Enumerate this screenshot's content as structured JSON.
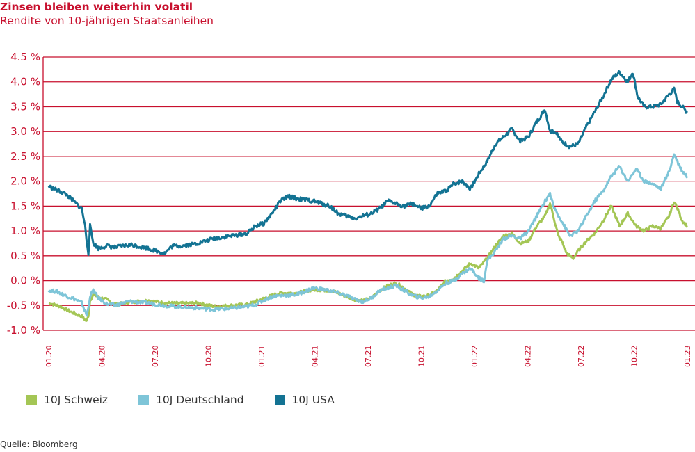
{
  "chart_data": {
    "type": "line",
    "title": "Zinsen bleiben weiterhin volatil",
    "subtitle": "Rendite von 10-jährigen Staatsanleihen",
    "y_ticks": [
      "4.5 %",
      "4.0 %",
      "3.5 %",
      "3.0 %",
      "2.5 %",
      "2.0 %",
      "1.5 %",
      "1.0 %",
      "0.5 %",
      "0.0 %",
      "-0.5 %",
      "-1.0 %"
    ],
    "ylim": [
      -1.0,
      4.5
    ],
    "grid": true,
    "x_ticks": [
      "01.20",
      "04.20",
      "07.20",
      "10.20",
      "01.21",
      "04.21",
      "07.21",
      "10.21",
      "01.22",
      "04.22",
      "07.22",
      "10.22",
      "01.23"
    ],
    "x_range_months": [
      0,
      36
    ],
    "legend_position": "bottom",
    "series": [
      {
        "name": "10J Schweiz",
        "color": "#a4c655",
        "points": [
          [
            0,
            -0.45
          ],
          [
            0.7,
            -0.52
          ],
          [
            1.3,
            -0.62
          ],
          [
            2.0,
            -0.72
          ],
          [
            2.3,
            -0.82
          ],
          [
            2.4,
            -0.7
          ],
          [
            2.5,
            -0.4
          ],
          [
            2.7,
            -0.28
          ],
          [
            3.0,
            -0.33
          ],
          [
            3.5,
            -0.38
          ],
          [
            4.0,
            -0.48
          ],
          [
            4.5,
            -0.46
          ],
          [
            5.0,
            -0.43
          ],
          [
            6.0,
            -0.4
          ],
          [
            7.0,
            -0.45
          ],
          [
            8.0,
            -0.46
          ],
          [
            9.0,
            -0.45
          ],
          [
            10.0,
            -0.52
          ],
          [
            11.0,
            -0.5
          ],
          [
            12.0,
            -0.48
          ],
          [
            12.5,
            -0.42
          ],
          [
            13.0,
            -0.36
          ],
          [
            13.5,
            -0.3
          ],
          [
            14.0,
            -0.25
          ],
          [
            15.0,
            -0.25
          ],
          [
            16.0,
            -0.18
          ],
          [
            17.0,
            -0.2
          ],
          [
            17.5,
            -0.25
          ],
          [
            18.0,
            -0.32
          ],
          [
            18.5,
            -0.38
          ],
          [
            19.0,
            -0.4
          ],
          [
            19.5,
            -0.35
          ],
          [
            20.0,
            -0.2
          ],
          [
            20.5,
            -0.1
          ],
          [
            21.0,
            -0.05
          ],
          [
            21.5,
            -0.15
          ],
          [
            22.0,
            -0.28
          ],
          [
            22.5,
            -0.32
          ],
          [
            23.0,
            -0.3
          ],
          [
            23.5,
            -0.2
          ],
          [
            24.0,
            0.0
          ],
          [
            24.5,
            0.05
          ],
          [
            25.0,
            0.2
          ],
          [
            25.5,
            0.35
          ],
          [
            26.0,
            0.25
          ],
          [
            26.5,
            0.45
          ],
          [
            27.0,
            0.7
          ],
          [
            27.5,
            0.9
          ],
          [
            28.0,
            0.95
          ],
          [
            28.5,
            0.75
          ],
          [
            29.0,
            0.8
          ],
          [
            29.5,
            1.1
          ],
          [
            30.0,
            1.3
          ],
          [
            30.3,
            1.55
          ],
          [
            30.5,
            1.3
          ],
          [
            30.8,
            0.9
          ],
          [
            31.0,
            0.8
          ],
          [
            31.3,
            0.55
          ],
          [
            31.7,
            0.45
          ],
          [
            32.0,
            0.6
          ],
          [
            32.5,
            0.8
          ],
          [
            33.0,
            0.95
          ],
          [
            33.5,
            1.2
          ],
          [
            34.0,
            1.5
          ],
          [
            34.5,
            1.1
          ],
          [
            35.0,
            1.35
          ],
          [
            35.5,
            1.1
          ],
          [
            36.0,
            1.0
          ],
          [
            36.5,
            1.1
          ],
          [
            37.0,
            1.05
          ],
          [
            37.5,
            1.3
          ],
          [
            37.8,
            1.6
          ],
          [
            38.0,
            1.45
          ],
          [
            38.3,
            1.2
          ],
          [
            38.6,
            1.1
          ]
        ]
      },
      {
        "name": "10J Deutschland",
        "color": "#7ec5d8",
        "points": [
          [
            0,
            -0.2
          ],
          [
            0.5,
            -0.22
          ],
          [
            1.0,
            -0.3
          ],
          [
            1.5,
            -0.36
          ],
          [
            2.0,
            -0.45
          ],
          [
            2.3,
            -0.7
          ],
          [
            2.4,
            -0.55
          ],
          [
            2.5,
            -0.3
          ],
          [
            2.7,
            -0.2
          ],
          [
            3.0,
            -0.35
          ],
          [
            3.5,
            -0.47
          ],
          [
            4.0,
            -0.5
          ],
          [
            4.5,
            -0.45
          ],
          [
            5.0,
            -0.42
          ],
          [
            6.0,
            -0.45
          ],
          [
            7.0,
            -0.5
          ],
          [
            8.0,
            -0.53
          ],
          [
            9.0,
            -0.55
          ],
          [
            10.0,
            -0.58
          ],
          [
            11.0,
            -0.56
          ],
          [
            12.0,
            -0.52
          ],
          [
            12.5,
            -0.48
          ],
          [
            13.0,
            -0.4
          ],
          [
            13.5,
            -0.32
          ],
          [
            14.0,
            -0.3
          ],
          [
            15.0,
            -0.28
          ],
          [
            16.0,
            -0.15
          ],
          [
            17.0,
            -0.2
          ],
          [
            17.5,
            -0.25
          ],
          [
            18.0,
            -0.3
          ],
          [
            18.5,
            -0.38
          ],
          [
            19.0,
            -0.42
          ],
          [
            19.5,
            -0.35
          ],
          [
            20.0,
            -0.2
          ],
          [
            20.5,
            -0.15
          ],
          [
            21.0,
            -0.1
          ],
          [
            21.5,
            -0.2
          ],
          [
            22.0,
            -0.3
          ],
          [
            22.5,
            -0.35
          ],
          [
            23.0,
            -0.32
          ],
          [
            23.5,
            -0.2
          ],
          [
            24.0,
            -0.05
          ],
          [
            24.5,
            0.0
          ],
          [
            25.0,
            0.15
          ],
          [
            25.5,
            0.25
          ],
          [
            26.0,
            0.05
          ],
          [
            26.3,
            0.0
          ],
          [
            26.5,
            0.4
          ],
          [
            27.0,
            0.6
          ],
          [
            27.5,
            0.85
          ],
          [
            28.0,
            0.9
          ],
          [
            28.5,
            0.85
          ],
          [
            29.0,
            1.0
          ],
          [
            29.5,
            1.3
          ],
          [
            30.0,
            1.6
          ],
          [
            30.3,
            1.75
          ],
          [
            30.5,
            1.5
          ],
          [
            31.0,
            1.2
          ],
          [
            31.5,
            0.9
          ],
          [
            32.0,
            1.0
          ],
          [
            32.5,
            1.3
          ],
          [
            33.0,
            1.6
          ],
          [
            33.5,
            1.8
          ],
          [
            34.0,
            2.1
          ],
          [
            34.5,
            2.3
          ],
          [
            35.0,
            2.0
          ],
          [
            35.5,
            2.25
          ],
          [
            36.0,
            2.0
          ],
          [
            36.5,
            1.95
          ],
          [
            37.0,
            1.85
          ],
          [
            37.5,
            2.2
          ],
          [
            37.8,
            2.55
          ],
          [
            38.0,
            2.4
          ],
          [
            38.3,
            2.2
          ],
          [
            38.6,
            2.1
          ]
        ]
      },
      {
        "name": "10J USA",
        "color": "#137393",
        "points": [
          [
            0,
            1.9
          ],
          [
            0.5,
            1.82
          ],
          [
            1.0,
            1.75
          ],
          [
            1.5,
            1.6
          ],
          [
            2.0,
            1.45
          ],
          [
            2.2,
            1.1
          ],
          [
            2.3,
            0.8
          ],
          [
            2.4,
            0.55
          ],
          [
            2.5,
            1.1
          ],
          [
            2.7,
            0.75
          ],
          [
            3.0,
            0.65
          ],
          [
            3.5,
            0.7
          ],
          [
            4.0,
            0.67
          ],
          [
            4.5,
            0.7
          ],
          [
            5.0,
            0.72
          ],
          [
            6.0,
            0.65
          ],
          [
            7.0,
            0.55
          ],
          [
            7.5,
            0.7
          ],
          [
            8.0,
            0.7
          ],
          [
            9.0,
            0.75
          ],
          [
            10.0,
            0.85
          ],
          [
            11.0,
            0.9
          ],
          [
            12.0,
            0.95
          ],
          [
            12.5,
            1.1
          ],
          [
            13.0,
            1.15
          ],
          [
            13.5,
            1.35
          ],
          [
            14.0,
            1.6
          ],
          [
            14.5,
            1.7
          ],
          [
            15.0,
            1.65
          ],
          [
            16.0,
            1.6
          ],
          [
            17.0,
            1.5
          ],
          [
            17.5,
            1.35
          ],
          [
            18.0,
            1.3
          ],
          [
            18.5,
            1.25
          ],
          [
            19.0,
            1.3
          ],
          [
            19.5,
            1.35
          ],
          [
            20.0,
            1.45
          ],
          [
            20.5,
            1.6
          ],
          [
            21.0,
            1.55
          ],
          [
            21.5,
            1.5
          ],
          [
            22.0,
            1.55
          ],
          [
            22.5,
            1.45
          ],
          [
            23.0,
            1.5
          ],
          [
            23.5,
            1.75
          ],
          [
            24.0,
            1.8
          ],
          [
            24.5,
            1.95
          ],
          [
            25.0,
            2.0
          ],
          [
            25.5,
            1.85
          ],
          [
            26.0,
            2.15
          ],
          [
            26.5,
            2.4
          ],
          [
            27.0,
            2.75
          ],
          [
            27.5,
            2.9
          ],
          [
            28.0,
            3.05
          ],
          [
            28.5,
            2.8
          ],
          [
            29.0,
            2.9
          ],
          [
            29.5,
            3.2
          ],
          [
            30.0,
            3.45
          ],
          [
            30.3,
            3.0
          ],
          [
            30.6,
            3.0
          ],
          [
            31.0,
            2.8
          ],
          [
            31.5,
            2.7
          ],
          [
            32.0,
            2.75
          ],
          [
            32.5,
            3.1
          ],
          [
            33.0,
            3.4
          ],
          [
            33.5,
            3.7
          ],
          [
            34.0,
            4.05
          ],
          [
            34.5,
            4.2
          ],
          [
            35.0,
            4.0
          ],
          [
            35.3,
            4.2
          ],
          [
            35.6,
            3.7
          ],
          [
            36.0,
            3.5
          ],
          [
            36.5,
            3.5
          ],
          [
            37.0,
            3.55
          ],
          [
            37.5,
            3.75
          ],
          [
            37.8,
            3.85
          ],
          [
            38.0,
            3.6
          ],
          [
            38.3,
            3.5
          ],
          [
            38.6,
            3.38
          ]
        ]
      }
    ]
  },
  "source": "Quelle: Bloomberg"
}
